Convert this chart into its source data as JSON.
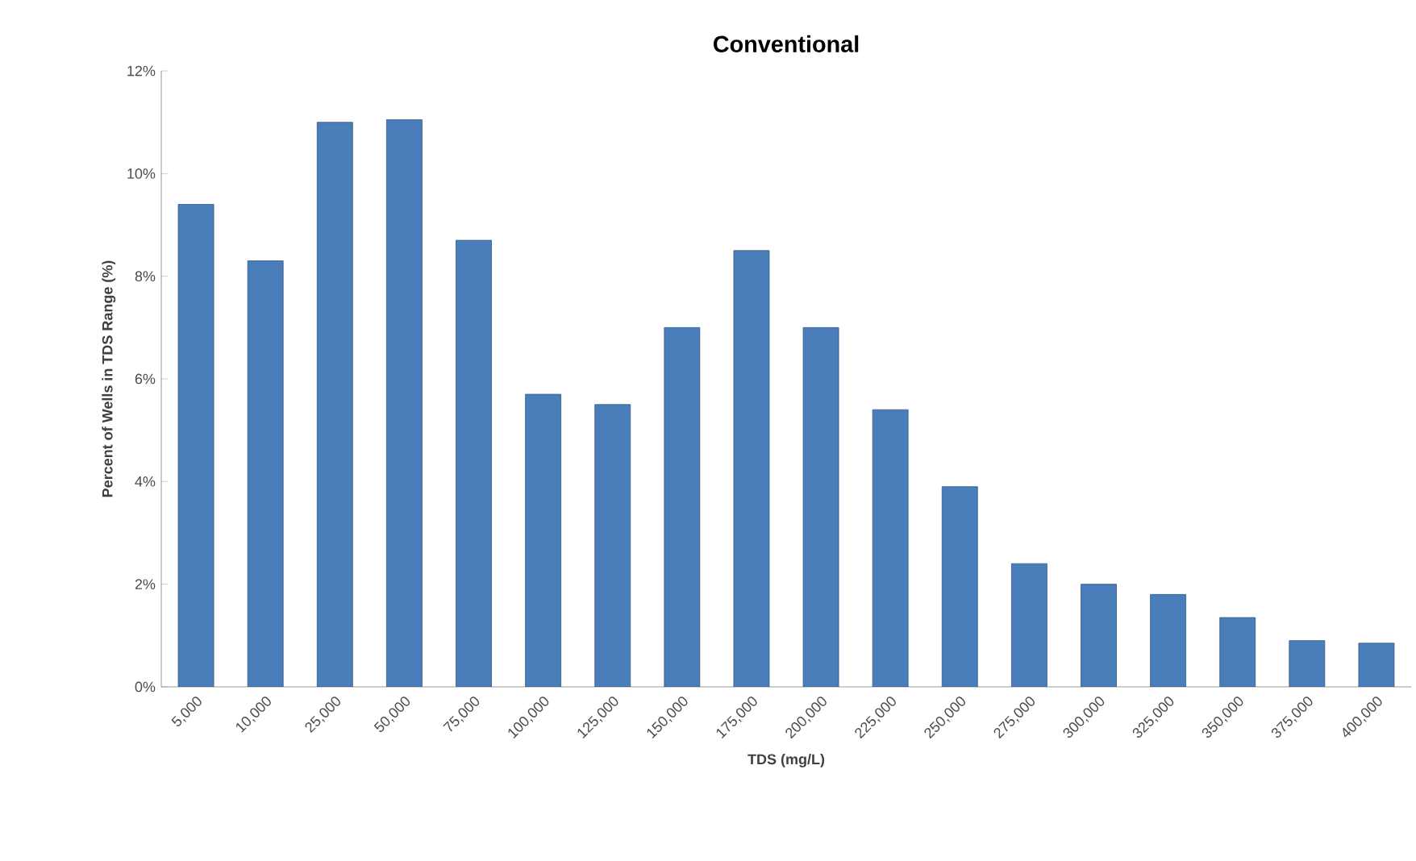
{
  "chart_data": {
    "type": "bar",
    "title": "Conventional",
    "xlabel": "TDS (mg/L)",
    "ylabel": "Percent of Wells in TDS Range (%)",
    "categories": [
      "5,000",
      "10,000",
      "25,000",
      "50,000",
      "75,000",
      "100,000",
      "125,000",
      "150,000",
      "175,000",
      "200,000",
      "225,000",
      "250,000",
      "275,000",
      "300,000",
      "325,000",
      "350,000",
      "375,000",
      "400,000"
    ],
    "values": [
      9.4,
      8.3,
      11.0,
      11.05,
      8.7,
      5.7,
      5.5,
      7.0,
      8.5,
      7.0,
      5.4,
      3.9,
      2.4,
      2.0,
      1.8,
      1.35,
      0.9,
      0.85
    ],
    "color": "#4a7ebb",
    "ylim": [
      0,
      12
    ],
    "yticks": [
      {
        "value": 0,
        "label": "0%"
      },
      {
        "value": 2,
        "label": "2%"
      },
      {
        "value": 4,
        "label": "4%"
      },
      {
        "value": 6,
        "label": "6%"
      },
      {
        "value": 8,
        "label": "8%"
      },
      {
        "value": 10,
        "label": "10%"
      },
      {
        "value": 12,
        "label": "12%"
      }
    ],
    "grid": false
  }
}
